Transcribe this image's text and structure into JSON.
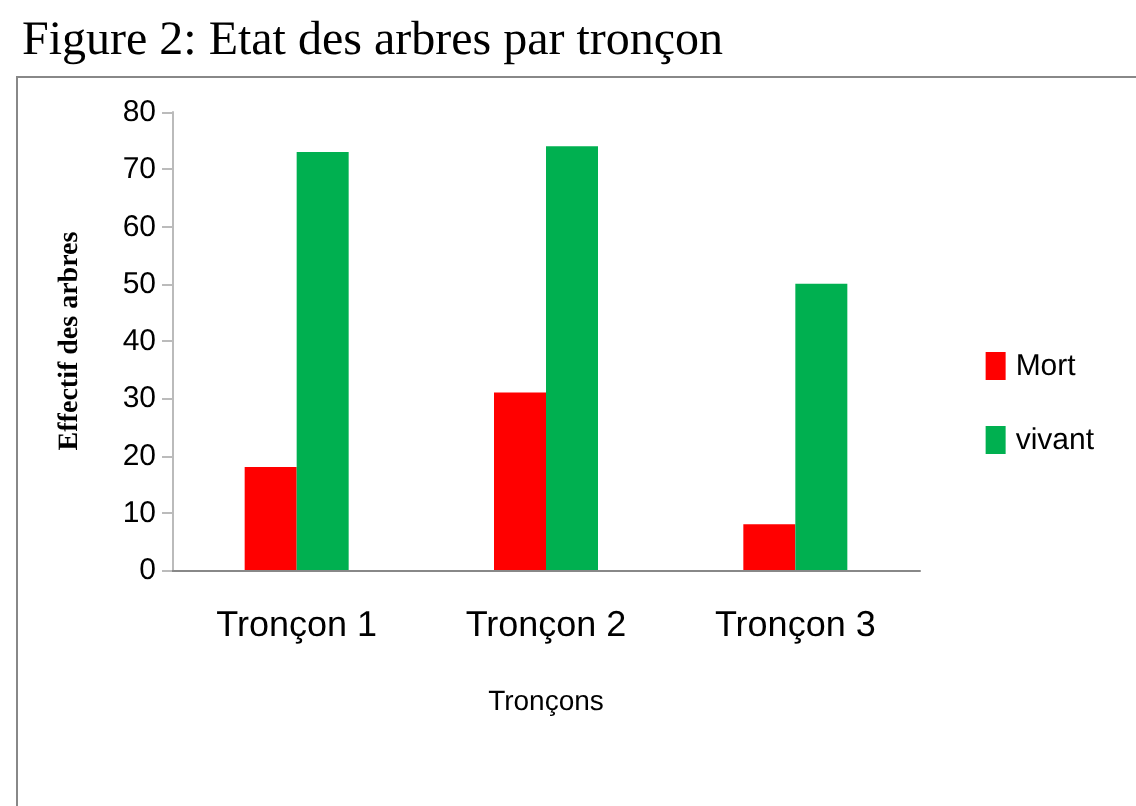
{
  "chart_data": {
    "type": "bar",
    "title": "Figure 2: Etat des arbres par tronçon",
    "xlabel": "Tronçons",
    "ylabel": "Effectif des arbres",
    "categories": [
      "Tronçon 1",
      "Tronçon 2",
      "Tronçon 3"
    ],
    "series": [
      {
        "name": "Mort",
        "color": "#ff0000",
        "values": [
          18,
          31,
          8
        ]
      },
      {
        "name": "vivant",
        "color": "#00b050",
        "values": [
          73,
          74,
          50
        ]
      }
    ],
    "ylim": [
      0,
      80
    ],
    "yticks": [
      0,
      10,
      20,
      30,
      40,
      50,
      60,
      70,
      80
    ],
    "grid": false,
    "legend": "right"
  }
}
